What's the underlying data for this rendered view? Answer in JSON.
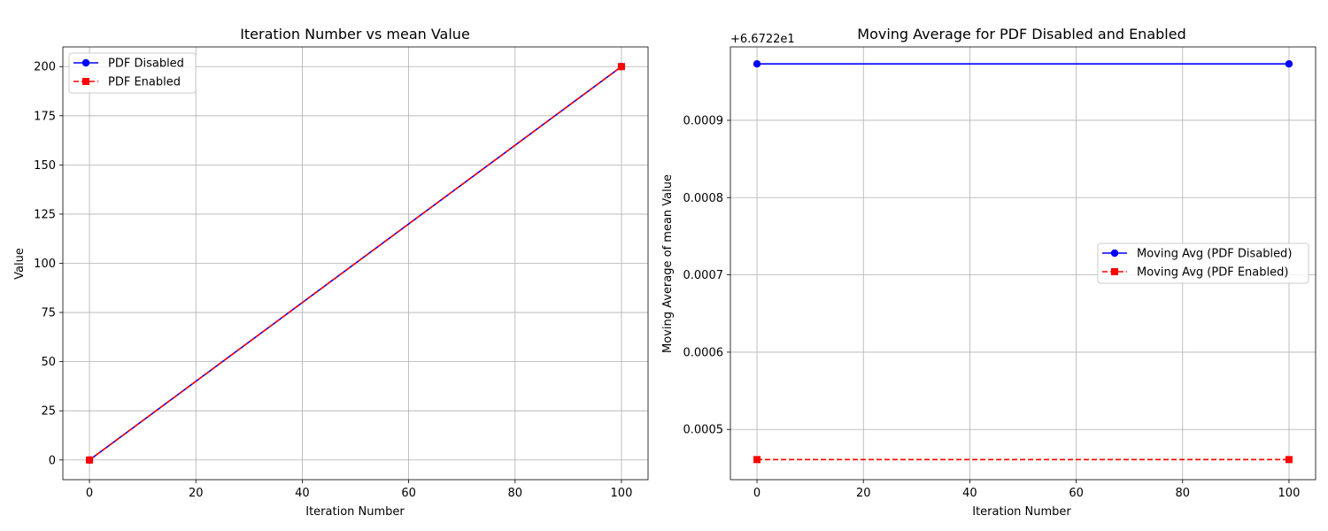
{
  "chart_data": [
    {
      "type": "line",
      "title": "Iteration Number vs mean Value",
      "xlabel": "Iteration Number",
      "ylabel": "Value",
      "xlim": [
        -5,
        105
      ],
      "ylim": [
        -10,
        210
      ],
      "xticks": [
        0,
        20,
        40,
        60,
        80,
        100
      ],
      "yticks": [
        0,
        25,
        50,
        75,
        100,
        125,
        150,
        175,
        200
      ],
      "tick_labels_x": [
        "0",
        "20",
        "40",
        "60",
        "80",
        "100"
      ],
      "tick_labels_y": [
        "0",
        "25",
        "50",
        "75",
        "100",
        "125",
        "150",
        "175",
        "200"
      ],
      "grid": true,
      "legend_position": "top-left",
      "series": [
        {
          "name": "PDF Disabled",
          "x": [
            0,
            100
          ],
          "values": [
            0,
            200
          ],
          "color": "#0000ff",
          "marker": "circle",
          "linestyle": "solid"
        },
        {
          "name": "PDF Enabled",
          "x": [
            0,
            100
          ],
          "values": [
            0,
            200
          ],
          "color": "#ff0000",
          "marker": "square",
          "linestyle": "dashed"
        }
      ]
    },
    {
      "type": "line",
      "title": "Moving Average for PDF Disabled and Enabled",
      "xlabel": "Iteration Number",
      "ylabel": "Moving Average of mean Value",
      "offset_text": "+6.6722e1",
      "xlim": [
        -5,
        105
      ],
      "ylim": [
        0.000435,
        0.000995
      ],
      "xticks": [
        0,
        20,
        40,
        60,
        80,
        100
      ],
      "yticks": [
        0.0005,
        0.0006,
        0.0007,
        0.0008,
        0.0009
      ],
      "tick_labels_x": [
        "0",
        "20",
        "40",
        "60",
        "80",
        "100"
      ],
      "tick_labels_y": [
        "0.0005",
        "0.0006",
        "0.0007",
        "0.0008",
        "0.0009"
      ],
      "grid": true,
      "legend_position": "center-right",
      "series": [
        {
          "name": "Moving Avg (PDF Disabled)",
          "x": [
            0,
            100
          ],
          "values": [
            0.000973,
            0.000973
          ],
          "color": "#0000ff",
          "marker": "circle",
          "linestyle": "solid"
        },
        {
          "name": "Moving Avg (PDF Enabled)",
          "x": [
            0,
            100
          ],
          "values": [
            0.000461,
            0.000461
          ],
          "color": "#ff0000",
          "marker": "square",
          "linestyle": "dashed"
        }
      ]
    }
  ]
}
